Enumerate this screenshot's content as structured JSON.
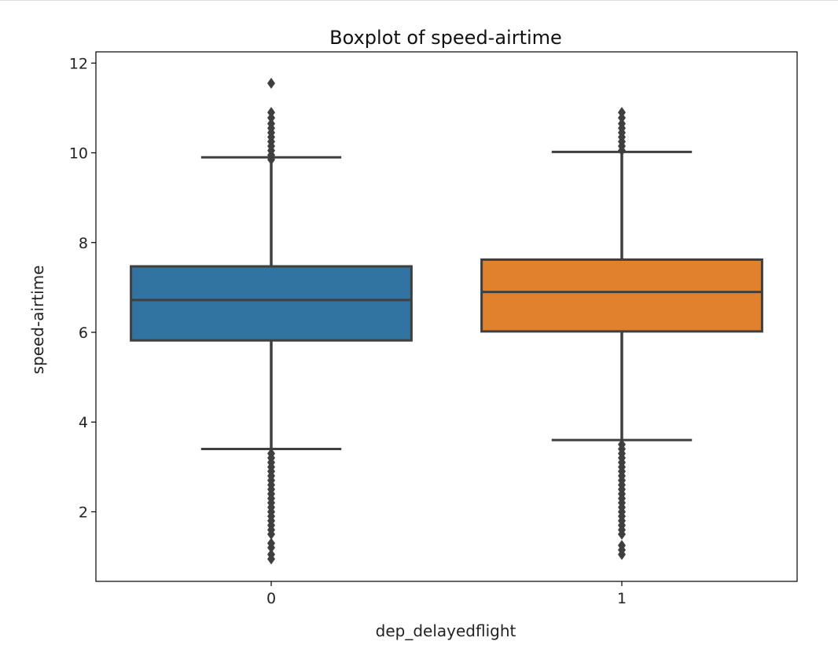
{
  "chart_data": {
    "type": "boxplot",
    "title": "Boxplot of speed-airtime",
    "xlabel": "dep_delayedflight",
    "ylabel": "speed-airtime",
    "ylim": [
      0.45,
      12.25
    ],
    "yticks": [
      2,
      4,
      6,
      8,
      10,
      12
    ],
    "grid": false,
    "categories": [
      "0",
      "1"
    ],
    "series": [
      {
        "category": "0",
        "color": "#3274a1",
        "whisker_low": 3.4,
        "q1": 5.82,
        "median": 6.72,
        "q3": 7.47,
        "whisker_high": 9.9,
        "outliers_high": [
          9.85,
          9.95,
          10.05,
          10.15,
          10.25,
          10.35,
          10.45,
          10.55,
          10.65,
          10.78,
          10.9,
          11.55
        ],
        "outliers_low": [
          0.95,
          1.05,
          1.2,
          1.3,
          1.5,
          1.6,
          1.7,
          1.8,
          1.9,
          2.0,
          2.1,
          2.2,
          2.3,
          2.4,
          2.5,
          2.6,
          2.7,
          2.8,
          2.9,
          3.0,
          3.1,
          3.2,
          3.3
        ]
      },
      {
        "category": "1",
        "color": "#e1812c",
        "whisker_low": 3.6,
        "q1": 6.02,
        "median": 6.9,
        "q3": 7.62,
        "whisker_high": 10.02,
        "outliers_high": [
          10.05,
          10.15,
          10.25,
          10.35,
          10.45,
          10.55,
          10.65,
          10.78,
          10.9
        ],
        "outliers_low": [
          1.05,
          1.15,
          1.25,
          1.5,
          1.6,
          1.7,
          1.8,
          1.9,
          2.0,
          2.1,
          2.2,
          2.3,
          2.4,
          2.5,
          2.6,
          2.7,
          2.8,
          2.9,
          3.0,
          3.1,
          3.2,
          3.3,
          3.4,
          3.5
        ]
      }
    ]
  }
}
